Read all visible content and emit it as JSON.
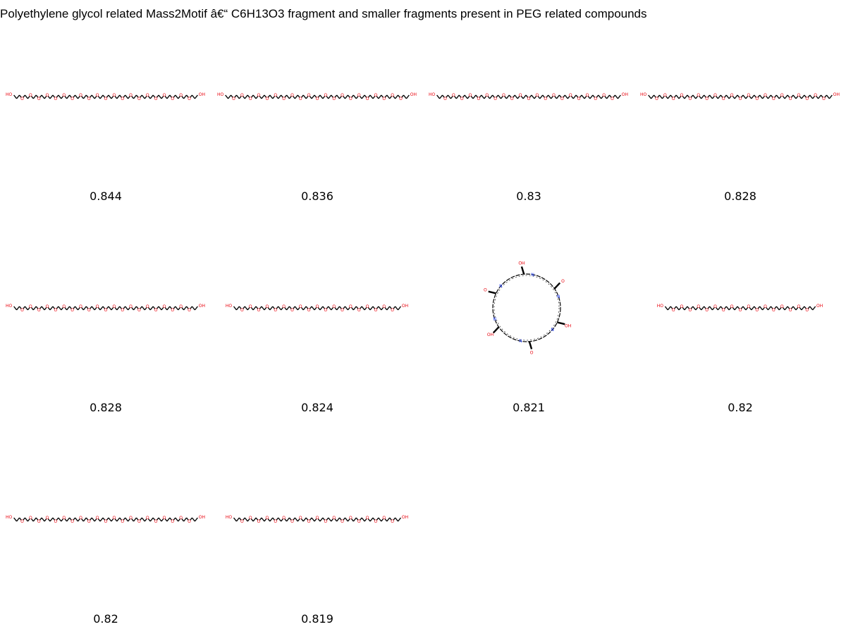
{
  "title": "Polyethylene glycol related Mass2Motif â€“ C6H13O3 fragment and smaller fragments present in PEG related compounds",
  "atom_labels": {
    "hydroxyl": "HO",
    "hydroxyl_right": "OH",
    "oxygen": "O",
    "nitrogen": "N"
  },
  "molecules": [
    {
      "kind": "peg",
      "units": 11,
      "score": "0.844"
    },
    {
      "kind": "peg",
      "units": 11,
      "score": "0.836"
    },
    {
      "kind": "peg",
      "units": 11,
      "score": "0.83"
    },
    {
      "kind": "peg",
      "units": 11,
      "score": "0.828"
    },
    {
      "kind": "peg",
      "units": 11,
      "score": "0.828"
    },
    {
      "kind": "peg",
      "units": 10,
      "score": "0.824"
    },
    {
      "kind": "cyclic",
      "units": 6,
      "score": "0.821"
    },
    {
      "kind": "peg",
      "units": 9,
      "score": "0.82"
    },
    {
      "kind": "peg",
      "units": 11,
      "score": "0.82"
    },
    {
      "kind": "peg",
      "units": 10,
      "score": "0.819"
    }
  ],
  "colors": {
    "bond": "#000000",
    "oxygen": "#e8000b",
    "nitrogen": "#1f3fff",
    "background": "#ffffff"
  }
}
